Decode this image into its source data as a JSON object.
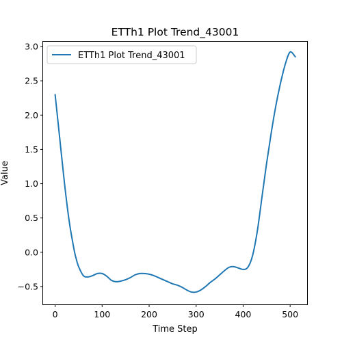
{
  "chart_data": {
    "type": "line",
    "title": "ETTh1 Plot Trend_43001",
    "xlabel": "Time Step",
    "ylabel": "Value",
    "xlim": [
      -25.6,
      537.6
    ],
    "ylim": [
      -0.76,
      3.07
    ],
    "xticks": [
      0,
      100,
      200,
      300,
      400,
      500
    ],
    "yticks": [
      -0.5,
      0.0,
      0.5,
      1.0,
      1.5,
      2.0,
      2.5,
      3.0
    ],
    "ytick_labels": [
      "−0.5",
      "0.0",
      "0.5",
      "1.0",
      "1.5",
      "2.0",
      "2.5",
      "3.0"
    ],
    "grid": false,
    "legend_position": "top-left",
    "series": [
      {
        "name": "ETTh1 Plot Trend_43001",
        "color": "#1f77b4",
        "x": [
          0,
          10,
          20,
          30,
          40,
          45,
          50,
          60,
          70,
          80,
          90,
          100,
          110,
          120,
          130,
          140,
          150,
          160,
          170,
          180,
          190,
          200,
          210,
          220,
          230,
          240,
          250,
          260,
          270,
          280,
          290,
          300,
          310,
          320,
          330,
          340,
          350,
          360,
          370,
          380,
          390,
          400,
          410,
          420,
          430,
          440,
          450,
          460,
          470,
          480,
          490,
          500,
          511
        ],
        "y": [
          2.3,
          1.65,
          1.0,
          0.45,
          0.05,
          -0.1,
          -0.21,
          -0.34,
          -0.36,
          -0.34,
          -0.31,
          -0.31,
          -0.35,
          -0.41,
          -0.43,
          -0.42,
          -0.4,
          -0.37,
          -0.33,
          -0.31,
          -0.31,
          -0.32,
          -0.34,
          -0.37,
          -0.4,
          -0.43,
          -0.46,
          -0.48,
          -0.51,
          -0.55,
          -0.58,
          -0.58,
          -0.55,
          -0.5,
          -0.44,
          -0.39,
          -0.33,
          -0.27,
          -0.22,
          -0.21,
          -0.23,
          -0.25,
          -0.22,
          -0.05,
          0.3,
          0.8,
          1.3,
          1.75,
          2.15,
          2.48,
          2.75,
          2.92,
          2.85
        ]
      }
    ]
  }
}
